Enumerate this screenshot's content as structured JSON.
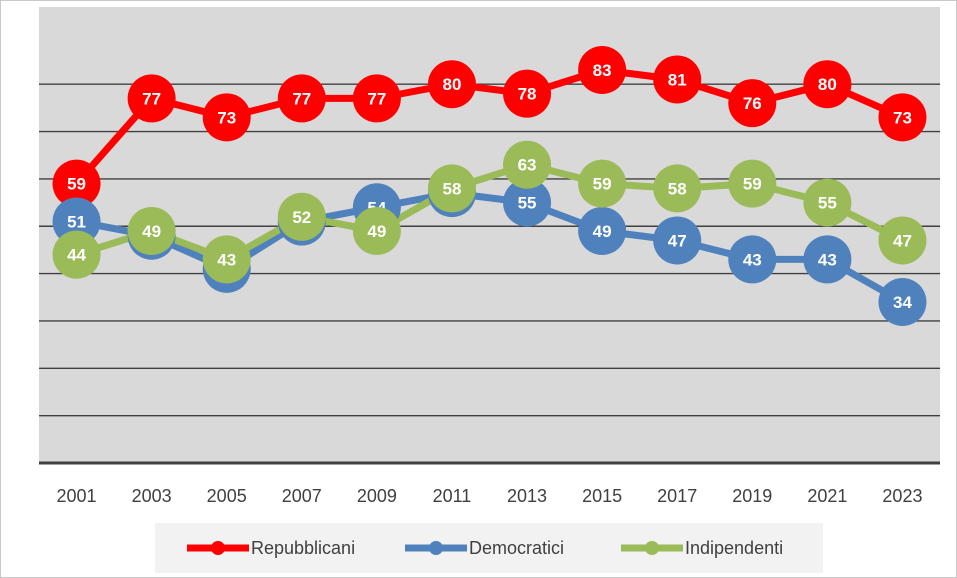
{
  "chart_data": {
    "type": "line",
    "title": "",
    "xlabel": "",
    "ylabel": "",
    "ylim": [
      0,
      90
    ],
    "grid": true,
    "legend_position": "bottom",
    "categories": [
      "2001",
      "2003",
      "2005",
      "2007",
      "2009",
      "2011",
      "2013",
      "2015",
      "2017",
      "2019",
      "2021",
      "2023"
    ],
    "series": [
      {
        "name": "Repubblicani",
        "color": "#ff0000",
        "values": [
          59,
          77,
          73,
          77,
          77,
          80,
          78,
          83,
          81,
          76,
          80,
          73
        ]
      },
      {
        "name": "Democratici",
        "color": "#4f81bd",
        "values": [
          51,
          48,
          41,
          51,
          54,
          57,
          55,
          49,
          47,
          43,
          43,
          34
        ]
      },
      {
        "name": "Indipendenti",
        "color": "#9bbb59",
        "values": [
          44,
          49,
          43,
          52,
          49,
          58,
          63,
          59,
          58,
          59,
          55,
          47
        ]
      }
    ]
  }
}
